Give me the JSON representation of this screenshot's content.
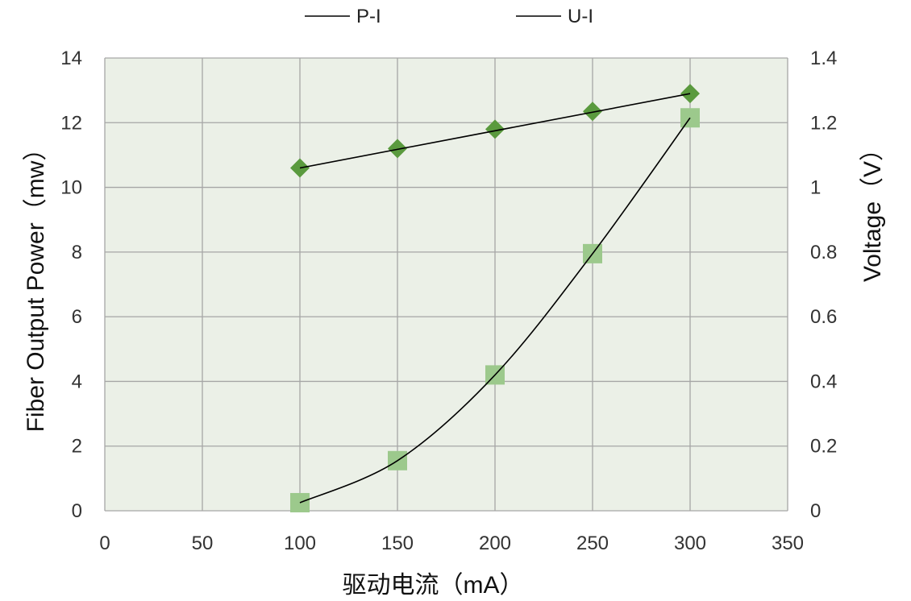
{
  "chart_data": {
    "type": "scatter",
    "xlabel": "驱动电流（mA）",
    "ylabel": "Fiber Output Power（mw）",
    "y2label": "Voltage（V）",
    "xlim": [
      0,
      350
    ],
    "ylim": [
      0,
      14
    ],
    "y2lim": [
      0,
      1.4
    ],
    "xticks": [
      "0",
      "50",
      "100",
      "150",
      "200",
      "250",
      "300",
      "350"
    ],
    "yticks": [
      "0",
      "2",
      "4",
      "6",
      "8",
      "10",
      "12",
      "14"
    ],
    "y2ticks": [
      "0",
      "0.2",
      "0.4",
      "0.6",
      "0.8",
      "1",
      "1.2",
      "1.4"
    ],
    "grid": true,
    "legend_position": "top",
    "series": [
      {
        "name": "P-I",
        "axis": "left",
        "marker": "square",
        "color": "#9cc98c",
        "x": [
          100,
          150,
          200,
          250,
          300
        ],
        "y": [
          0.25,
          1.55,
          4.2,
          7.95,
          12.15
        ]
      },
      {
        "name": "U-I",
        "axis": "right",
        "marker": "diamond",
        "color": "#5a9a3e",
        "x": [
          100,
          150,
          200,
          250,
          300
        ],
        "y": [
          1.06,
          1.12,
          1.18,
          1.235,
          1.29
        ]
      }
    ],
    "colors": {
      "plot_background": "#ebf0e7",
      "grid": "#a6a6a6",
      "fit_line": "#000000"
    }
  }
}
